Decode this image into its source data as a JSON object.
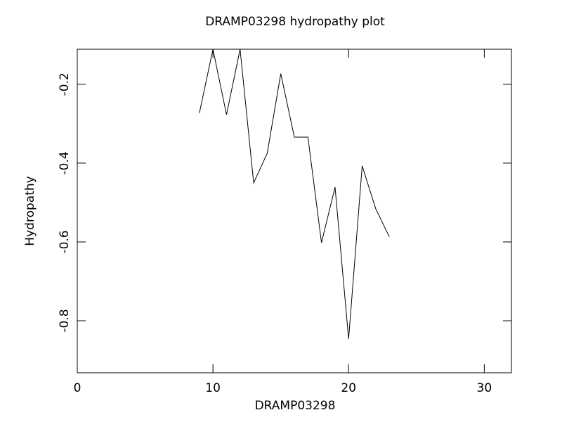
{
  "chart_data": {
    "type": "line",
    "title": "DRAMP03298 hydropathy plot",
    "x_label": "DRAMP03298",
    "y_label": "Hydropathy",
    "x": [
      9,
      10,
      11,
      12,
      13,
      14,
      15,
      16,
      17,
      18,
      19,
      20,
      21,
      22,
      23
    ],
    "series": [
      {
        "name": "Hydropathy",
        "color": "#000000",
        "values": [
          -0.273,
          -0.111,
          -0.277,
          -0.111,
          -0.45,
          -0.375,
          -0.173,
          -0.334,
          -0.334,
          -0.602,
          -0.461,
          -0.846,
          -0.407,
          -0.516,
          -0.587
        ]
      }
    ],
    "xlim": [
      0,
      32
    ],
    "xticks": [
      0,
      10,
      20,
      30
    ],
    "ylim": [
      -0.932,
      -0.111
    ],
    "yticks": [
      -0.2,
      -0.4,
      -0.6,
      -0.8
    ]
  }
}
